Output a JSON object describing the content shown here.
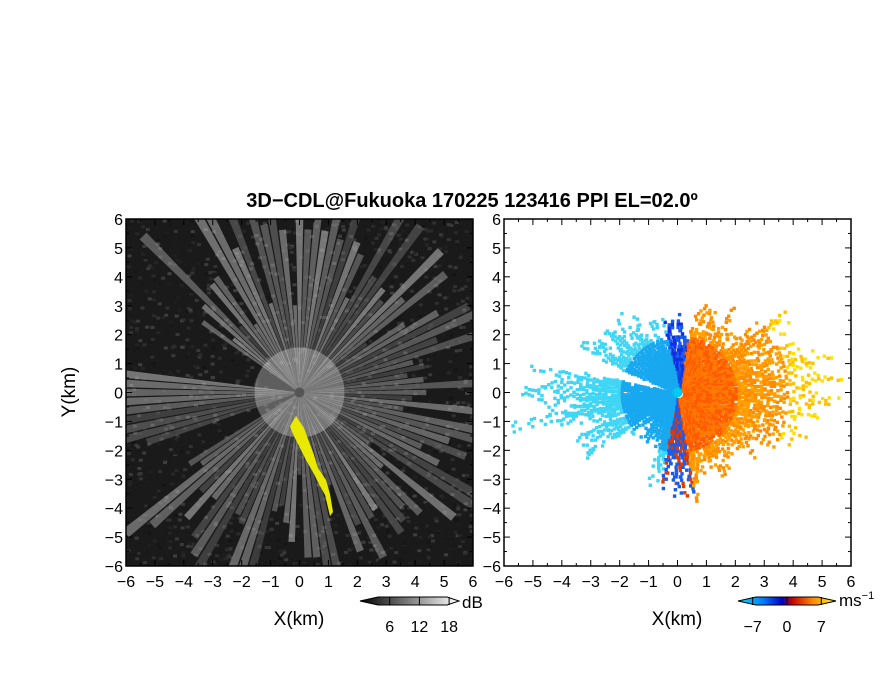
{
  "title": "3D−CDL@Fukuoka 170225 123416 PPI EL=02.0º",
  "colors": {
    "text": "#000000",
    "frame": "#000000",
    "echo": "#e8e800"
  },
  "chart_data": [
    {
      "type": "heatmap",
      "variable": "reflectivity",
      "xlabel": "X(km)",
      "ylabel": "Y(km)",
      "xlim": [
        -6,
        6
      ],
      "ylim": [
        -6,
        6
      ],
      "xticks": [
        "−6",
        "−5",
        "−4",
        "−3",
        "−2",
        "−1",
        "0",
        "1",
        "2",
        "3",
        "4",
        "5",
        "6"
      ],
      "yticks": [
        "6",
        "5",
        "4",
        "3",
        "2",
        "1",
        "0",
        "−1",
        "−2",
        "−3",
        "−4",
        "−5",
        "−6"
      ],
      "colorbar": {
        "unit": "dB",
        "ticks": [
          "6",
          "12",
          "18"
        ],
        "range": [
          0,
          20
        ]
      },
      "grid": false
    },
    {
      "type": "heatmap",
      "variable": "doppler-velocity",
      "xlabel": "X(km)",
      "ylabel": "",
      "xlim": [
        -6,
        6
      ],
      "ylim": [
        -6,
        6
      ],
      "xticks": [
        "−6",
        "−5",
        "−4",
        "−3",
        "−2",
        "−1",
        "0",
        "1",
        "2",
        "3",
        "4",
        "5",
        "6"
      ],
      "yticks": [
        "6",
        "5",
        "4",
        "3",
        "2",
        "1",
        "0",
        "−1",
        "−2",
        "−3",
        "−4",
        "−5",
        "−6"
      ],
      "colorbar": {
        "unit": "ms",
        "unit_exp": "−1",
        "ticks": [
          "−7",
          "0",
          "7"
        ],
        "range": [
          -10,
          10
        ]
      },
      "grid": false
    }
  ]
}
